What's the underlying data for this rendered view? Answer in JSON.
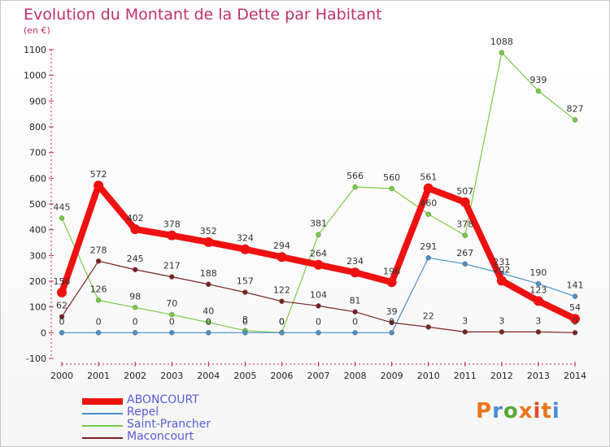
{
  "header": {
    "title": "Evolution du Montant de la Dette par Habitant",
    "unit": "(en €)"
  },
  "logo": {
    "text": "Proxiti",
    "colors": [
      "#e8761e",
      "#4a8fd4",
      "#5aa83a",
      "#e8761e",
      "#d94a2b",
      "#e8761e",
      "#4a8fd4"
    ]
  },
  "chart_data": {
    "type": "line",
    "x": [
      2000,
      2001,
      2002,
      2003,
      2004,
      2005,
      2006,
      2007,
      2008,
      2009,
      2010,
      2011,
      2012,
      2013,
      2014
    ],
    "ylim": [
      -100,
      1100
    ],
    "yticks": [
      -100,
      0,
      100,
      200,
      300,
      400,
      500,
      600,
      700,
      800,
      900,
      1000,
      1100
    ],
    "grid": false,
    "legend_position": "bottom-left",
    "series": [
      {
        "name": "ABONCOURT",
        "color": "#ee1111",
        "values": [
          156,
          572,
          402,
          378,
          352,
          324,
          294,
          264,
          234,
          196,
          561,
          507,
          202,
          123,
          54
        ],
        "labels": [
          "156",
          "572",
          "402",
          "378",
          "352",
          "324",
          "294",
          "264",
          "234",
          "196",
          "561",
          "507",
          "202",
          "123",
          "54"
        ]
      },
      {
        "name": "Repel",
        "color": "#4a90c8",
        "values": [
          0,
          0,
          0,
          0,
          0,
          0,
          0,
          0,
          0,
          0,
          291,
          267,
          231,
          190,
          141
        ],
        "labels": [
          "0",
          "0",
          "0",
          "0",
          "0",
          "0",
          "0",
          "0",
          "0",
          "0",
          "291",
          "267",
          "231",
          "190",
          "141"
        ]
      },
      {
        "name": "Saint-Prancher",
        "color": "#77cc44",
        "values": [
          445,
          126,
          98,
          70,
          40,
          8,
          0,
          381,
          566,
          560,
          460,
          378,
          1088,
          939,
          827
        ],
        "labels": [
          "445",
          "126",
          "98",
          "70",
          "40",
          "8",
          "0",
          "381",
          "566",
          "560",
          "460",
          "378",
          "1088",
          "939",
          "827"
        ]
      },
      {
        "name": "Maconcourt",
        "color": "#7a2222",
        "values": [
          62,
          278,
          245,
          217,
          188,
          157,
          122,
          104,
          81,
          39,
          22,
          3,
          3,
          3,
          0
        ],
        "labels": [
          "62",
          "278",
          "245",
          "217",
          "188",
          "157",
          "122",
          "104",
          "81",
          "39",
          "22",
          "3",
          "3",
          "3",
          "0"
        ]
      }
    ]
  }
}
